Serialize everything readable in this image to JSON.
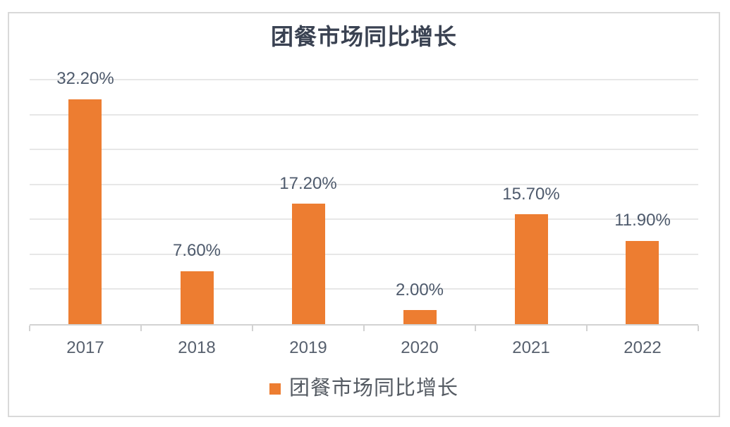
{
  "chart_data": {
    "type": "bar",
    "title": "团餐市场同比增长",
    "categories": [
      "2017",
      "2018",
      "2019",
      "2020",
      "2021",
      "2022"
    ],
    "values": [
      32.2,
      7.6,
      17.2,
      2.0,
      15.7,
      11.9
    ],
    "value_labels": [
      "32.20%",
      "7.60%",
      "17.20%",
      "2.00%",
      "15.70%",
      "11.90%"
    ],
    "xlabel": "",
    "ylabel": "",
    "ylim": [
      0,
      35
    ],
    "grid_step": 5,
    "grid": true,
    "legend_position": "bottom",
    "legend": [
      {
        "label": "团餐市场同比增长",
        "color": "#ED7D31"
      }
    ],
    "colors": {
      "bar": "#ED7D31",
      "title_text": "#3A4252",
      "value_label_text": "#4E5A6C",
      "axis_label_text": "#57606E",
      "legend_text": "#555B63",
      "gridline": "#E7E7E7",
      "axis_line": "#D2D2D2",
      "frame_border": "#D9D9D9",
      "background": "#FFFFFF"
    }
  }
}
